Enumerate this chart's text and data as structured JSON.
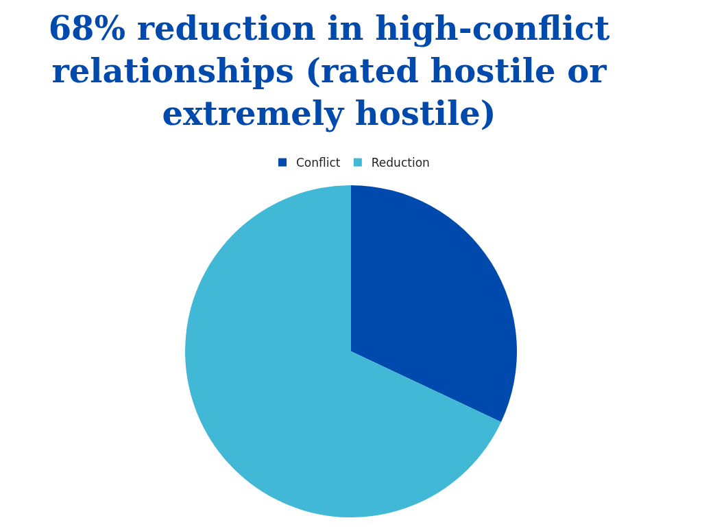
{
  "chart_data": {
    "type": "pie",
    "title": "68% reduction in high-conflict relationships (rated hostile or extremely hostile)",
    "categories": [
      "Conflict",
      "Reduction"
    ],
    "values": [
      32,
      68
    ],
    "colors": [
      "#004aad",
      "#41b8d5"
    ],
    "legend": "top"
  }
}
